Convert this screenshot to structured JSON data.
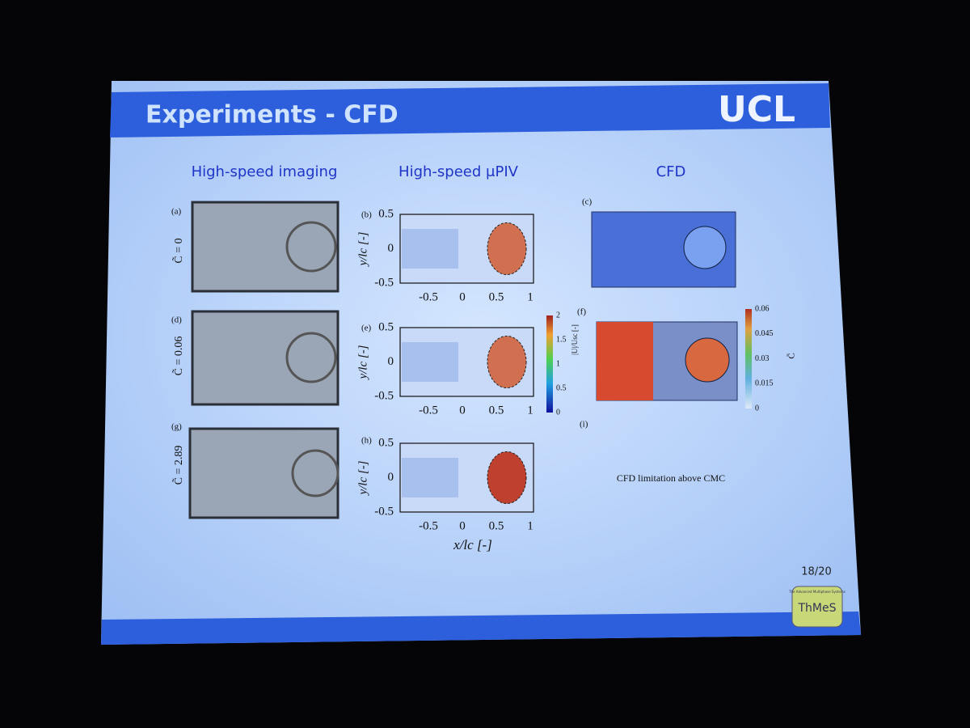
{
  "slide": {
    "title": "Experiments - CFD",
    "logo": "UCL",
    "columns": [
      "High-speed imaging",
      "High-speed μPIV",
      "CFD"
    ],
    "panel_labels": [
      "(a)",
      "(b)",
      "(c)",
      "(d)",
      "(e)",
      "(f)",
      "(g)",
      "(h)",
      "(i)"
    ],
    "row_labels": [
      "C̃ = 0",
      "C̃ = 0.06",
      "C̃ = 2.89"
    ],
    "piv": {
      "y_label": "y/lc [-]",
      "x_label": "x/lc [-]",
      "yticks": [
        "0.5",
        "0",
        "-0.5"
      ],
      "xticks": [
        "-0.5",
        "0",
        "0.5",
        "1"
      ]
    },
    "velocity_colorbar": {
      "label": "|U|/Usc [-]",
      "ticks": [
        "2",
        "1.5",
        "1",
        "0.5",
        "0"
      ]
    },
    "concentration_colorbar": {
      "label": "C̃",
      "ticks": [
        "0.06",
        "0.045",
        "0.03",
        "0.015",
        "0"
      ]
    },
    "cfd_note": "CFD limitation above CMC",
    "page": "18/20",
    "group_logo": {
      "name": "ThMeS",
      "tagline": "The Advanced Multiphase Systems"
    }
  }
}
